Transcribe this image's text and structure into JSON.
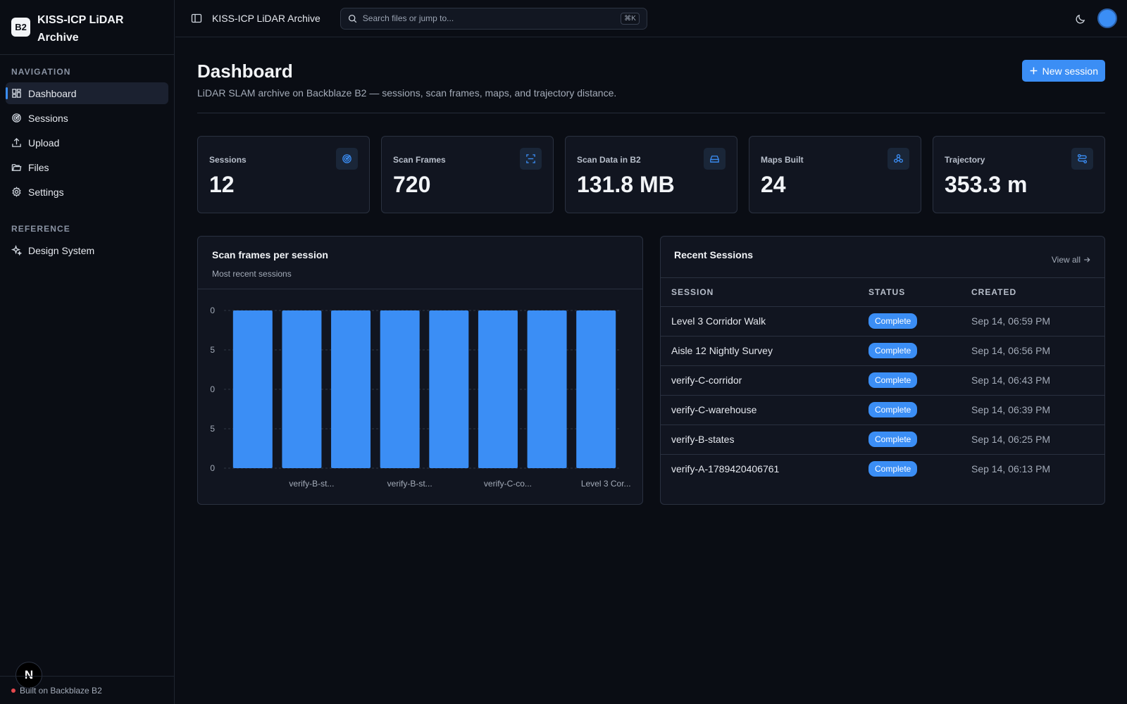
{
  "brand": {
    "badge": "B2",
    "title": "KISS-ICP LiDAR Archive"
  },
  "sidebar": {
    "nav_heading": "NAVIGATION",
    "items": [
      {
        "label": "Dashboard",
        "icon": "grid-icon",
        "active": true
      },
      {
        "label": "Sessions",
        "icon": "radar-icon"
      },
      {
        "label": "Upload",
        "icon": "upload-icon"
      },
      {
        "label": "Files",
        "icon": "folder-icon"
      },
      {
        "label": "Settings",
        "icon": "gear-icon"
      }
    ],
    "ref_heading": "REFERENCE",
    "ref_items": [
      {
        "label": "Design System",
        "icon": "sparkle-icon"
      }
    ],
    "footer": "Built on Backblaze B2",
    "bubble": "N"
  },
  "topbar": {
    "title": "KISS-ICP LiDAR Archive",
    "search_placeholder": "Search files or jump to...",
    "shortcut": "⌘K"
  },
  "page": {
    "title": "Dashboard",
    "subtitle": "LiDAR SLAM archive on Backblaze B2 — sessions, scan frames, maps, and trajectory distance.",
    "new_button": "New session"
  },
  "stats": [
    {
      "label": "Sessions",
      "value": "12",
      "icon": "radar-icon"
    },
    {
      "label": "Scan Frames",
      "value": "720",
      "icon": "scan-icon"
    },
    {
      "label": "Scan Data in B2",
      "value": "131.8 MB",
      "icon": "drive-icon"
    },
    {
      "label": "Maps Built",
      "value": "24",
      "icon": "nodes-icon"
    },
    {
      "label": "Trajectory",
      "value": "353.3 m",
      "icon": "route-icon"
    }
  ],
  "chart_panel": {
    "title": "Scan frames per session",
    "subtitle": "Most recent sessions"
  },
  "chart_data": {
    "type": "bar",
    "categories": [
      "",
      "verify-B-st...",
      "",
      "verify-B-st...",
      "",
      "verify-C-co...",
      "",
      "Level 3 Cor..."
    ],
    "values": [
      60,
      60,
      60,
      60,
      60,
      60,
      60,
      60
    ],
    "ylim": [
      0,
      60
    ],
    "yticks": [
      "0",
      "5",
      "0",
      "5",
      "0"
    ],
    "grid": true,
    "color": "#3b8ef5"
  },
  "recent": {
    "title": "Recent Sessions",
    "view_all": "View all",
    "columns": [
      "SESSION",
      "STATUS",
      "CREATED"
    ],
    "rows": [
      {
        "session": "Level 3 Corridor Walk",
        "status": "Complete",
        "created": "Sep 14, 06:59 PM"
      },
      {
        "session": "Aisle 12 Nightly Survey",
        "status": "Complete",
        "created": "Sep 14, 06:56 PM"
      },
      {
        "session": "verify-C-corridor",
        "status": "Complete",
        "created": "Sep 14, 06:43 PM"
      },
      {
        "session": "verify-C-warehouse",
        "status": "Complete",
        "created": "Sep 14, 06:39 PM"
      },
      {
        "session": "verify-B-states",
        "status": "Complete",
        "created": "Sep 14, 06:25 PM"
      },
      {
        "session": "verify-A-1789420406761",
        "status": "Complete",
        "created": "Sep 14, 06:13 PM"
      }
    ]
  }
}
